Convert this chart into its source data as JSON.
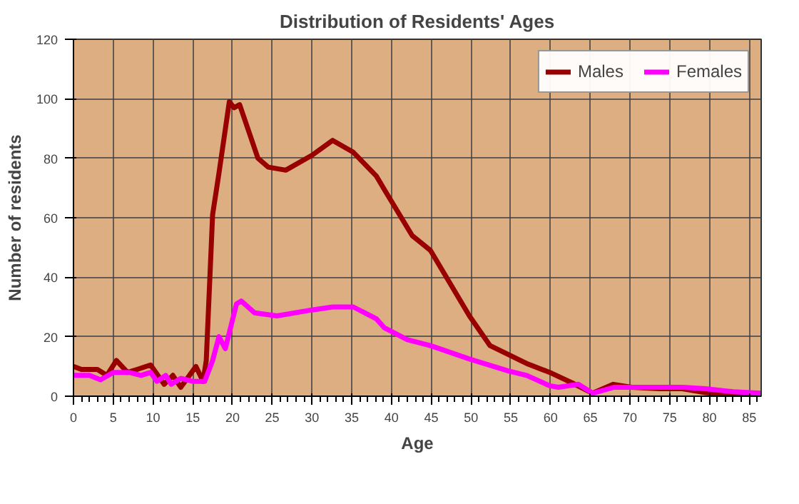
{
  "chart_data": {
    "type": "line",
    "title": "Distribution of Residents' Ages",
    "xlabel": "Age",
    "ylabel": "Number of residents",
    "xlim": [
      0,
      86.5
    ],
    "ylim": [
      0,
      120
    ],
    "xticks": [
      0,
      5,
      10,
      15,
      20,
      25,
      30,
      35,
      40,
      45,
      50,
      55,
      60,
      65,
      70,
      75,
      80,
      85
    ],
    "yticks": [
      0,
      20,
      40,
      60,
      80,
      100,
      120
    ],
    "grid": true,
    "legend": "top right",
    "line_style": "solid",
    "marker": "none",
    "series": [
      {
        "name": "Males",
        "color": "#990000",
        "x": [
          0,
          1,
          2,
          3,
          4.2,
          5.4,
          6.8,
          8,
          9.7,
          11.4,
          12.5,
          13.5,
          15.4,
          16.3,
          16.7,
          17.5,
          18.3,
          19.6,
          20.2,
          20.9,
          23.2,
          24.5,
          26.7,
          30,
          32.6,
          35.2,
          38.1,
          39.1,
          42.6,
          44.9,
          49.8,
          52.4,
          54.7,
          57,
          59.9,
          62.7,
          65.3,
          67.9,
          70.2,
          73.7,
          76.6,
          79.5,
          83,
          86.4
        ],
        "values": [
          10,
          9,
          9,
          9,
          7,
          12,
          8,
          9,
          10.5,
          4,
          7,
          3,
          10,
          5,
          12,
          61,
          75,
          99,
          97,
          98,
          80,
          77,
          76,
          81,
          86,
          82,
          74,
          69.5,
          54,
          49,
          27,
          17,
          14,
          11,
          8,
          4.5,
          1,
          4,
          3,
          2.5,
          2.5,
          1.2,
          0.5,
          0.5
        ]
      },
      {
        "name": "Females",
        "color": "#ff00ff",
        "x": [
          0,
          2,
          3.4,
          5,
          7,
          8.5,
          9.7,
          10.5,
          11.6,
          12.3,
          13.5,
          15,
          16.5,
          17.5,
          18.3,
          19.1,
          20.5,
          21.1,
          22.8,
          25.6,
          30,
          32.6,
          35.2,
          38.1,
          39.1,
          42,
          44.9,
          49.8,
          54.7,
          57,
          59.9,
          61,
          63.5,
          65.3,
          68,
          70.2,
          73.7,
          76.6,
          79.5,
          83,
          86.4
        ],
        "values": [
          7,
          7,
          5.5,
          8,
          8,
          7,
          8,
          5,
          7,
          4,
          6,
          5,
          5,
          12,
          20,
          16,
          31,
          32,
          28,
          27,
          29,
          30,
          30,
          26,
          23,
          19,
          17,
          12.5,
          8.5,
          7,
          3.5,
          3,
          4,
          1,
          3,
          3,
          3,
          3,
          2.5,
          1.5,
          1
        ]
      }
    ]
  }
}
